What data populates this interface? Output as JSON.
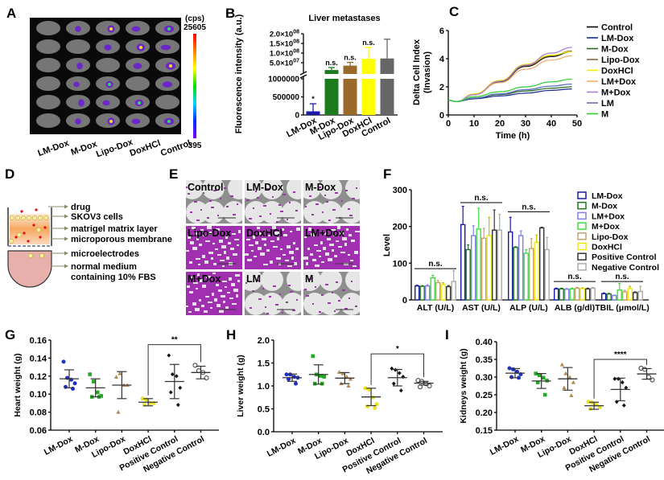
{
  "panel_labels": [
    "A",
    "B",
    "C",
    "D",
    "E",
    "F",
    "G",
    "H",
    "I"
  ],
  "panel_a": {
    "groups": [
      "LM-Dox",
      "M-Dox",
      "Lipo-Dox",
      "DoxHCl",
      "Control"
    ],
    "colorbar": {
      "unit": "(cps)",
      "max": "25605",
      "min": "395"
    }
  },
  "panel_d": {
    "labels": [
      "drug",
      "SKOV3 cells",
      "matrigel matrix layer",
      "microporous membrane",
      "microelectrodes",
      "normal medium",
      "containing 10% FBS"
    ]
  },
  "panel_e": {
    "tiles": [
      {
        "label": "Control",
        "stain": "low"
      },
      {
        "label": "LM-Dox",
        "stain": "low"
      },
      {
        "label": "M-Dox",
        "stain": "low"
      },
      {
        "label": "Lipo-Dox",
        "stain": "high"
      },
      {
        "label": "DoxHCl",
        "stain": "high"
      },
      {
        "label": "LM+Dox",
        "stain": "high"
      },
      {
        "label": "M+Dox",
        "stain": "high"
      },
      {
        "label": "LM",
        "stain": "low"
      },
      {
        "label": "M",
        "stain": "low"
      }
    ]
  },
  "chart_data": [
    {
      "panel": "B",
      "type": "bar",
      "title": "Liver metastases",
      "ylabel": "Fluorescence intensity (a.u.)",
      "categories": [
        "LM-Dox",
        "M-Dox",
        "Lipo-Dox",
        "DoxHCl",
        "Control"
      ],
      "values": [
        100000,
        12000000,
        35000000,
        70000000,
        72000000
      ],
      "errors": [
        210000,
        13000000,
        17000000,
        60000000,
        100000000
      ],
      "annotations": [
        "*",
        "n.s.",
        "n.s.",
        "n.s.",
        ""
      ],
      "colors": [
        "#1a1aa8",
        "#1e7a1e",
        "#9a6a2a",
        "#ffff00",
        "#666666"
      ],
      "axis_break": true,
      "lower_segment": {
        "ylim": [
          0,
          1000000
        ],
        "ticks": [
          0,
          500000,
          1000000
        ],
        "tick_labels": [
          "0",
          "500000",
          "1000000"
        ]
      },
      "upper_segment": {
        "ylim": [
          0,
          200000000
        ],
        "ticks": [
          50000000,
          100000000,
          150000000,
          200000000
        ],
        "tick_labels": [
          {
            "base": "5.0×10",
            "exp": "07"
          },
          {
            "base": "1.0×10",
            "exp": "08"
          },
          {
            "base": "1.5×10",
            "exp": "08"
          },
          {
            "base": "2.0×10",
            "exp": "08"
          }
        ]
      }
    },
    {
      "panel": "C",
      "type": "line",
      "xlabel": "Time (h)",
      "ylabel": [
        "Delta Cell Index",
        "(Invasion)"
      ],
      "xlim": [
        0,
        50
      ],
      "ylim": [
        0,
        6
      ],
      "xticks": [
        0,
        10,
        20,
        30,
        40,
        50
      ],
      "yticks": [
        0,
        2,
        4,
        6
      ],
      "x": [
        0,
        3,
        10,
        20,
        30,
        40,
        48
      ],
      "legend_position": "right",
      "series": [
        {
          "name": "Control",
          "color": "#000000",
          "values": [
            1.05,
            0.95,
            1.45,
            2.35,
            3.45,
            4.15,
            4.5
          ]
        },
        {
          "name": "LM-Dox",
          "color": "#1a2a8a",
          "values": [
            1.05,
            0.95,
            1.15,
            1.35,
            1.55,
            1.75,
            1.85
          ]
        },
        {
          "name": "M-Dox",
          "color": "#2a6a2a",
          "values": [
            1.05,
            0.95,
            1.2,
            1.45,
            1.7,
            1.9,
            2.0
          ]
        },
        {
          "name": "Lipo-Dox",
          "color": "#8a6a3a",
          "values": [
            1.05,
            0.95,
            1.45,
            2.4,
            3.5,
            4.2,
            4.55
          ]
        },
        {
          "name": "DoxHCl",
          "color": "#f0f000",
          "values": [
            1.05,
            0.95,
            1.5,
            2.45,
            3.6,
            4.25,
            4.5
          ]
        },
        {
          "name": "LM+Dox",
          "color": "#f0b070",
          "values": [
            1.05,
            0.95,
            1.45,
            2.3,
            3.25,
            3.9,
            4.2
          ]
        },
        {
          "name": "M+Dox",
          "color": "#b080d0",
          "values": [
            1.05,
            0.95,
            1.45,
            2.4,
            3.55,
            4.4,
            4.8
          ]
        },
        {
          "name": "LM",
          "color": "#6070c0",
          "values": [
            1.05,
            0.95,
            1.2,
            1.5,
            1.8,
            2.05,
            2.2
          ]
        },
        {
          "name": "M",
          "color": "#30d030",
          "values": [
            1.05,
            0.95,
            1.3,
            1.65,
            2.0,
            2.35,
            2.55
          ]
        }
      ]
    },
    {
      "panel": "F",
      "type": "bar",
      "ylabel": "Level",
      "ylim": [
        0,
        300
      ],
      "yticks": [
        0,
        100,
        200,
        300
      ],
      "categories": [
        "ALT (U/L)",
        "AST  (U/L)",
        "ALP  (U/L)",
        "ALB (g/dl)",
        "TBIL (μmol/L)"
      ],
      "legend_position": "top-right",
      "significance": [
        "n.s.",
        "n.s.",
        "n.s.",
        "n.s.",
        "n.s."
      ],
      "series": [
        {
          "name": "LM-Dox",
          "color": "#1a1aa0",
          "values": [
            38,
            205,
            185,
            30,
            17
          ],
          "errors": [
            2,
            50,
            40,
            2,
            2
          ]
        },
        {
          "name": "M-Dox",
          "color": "#1e7a1e",
          "values": [
            37,
            137,
            143,
            30,
            16
          ],
          "errors": [
            2,
            13,
            2,
            2,
            2
          ]
        },
        {
          "name": "LM+Dox",
          "color": "#8080e8",
          "values": [
            38,
            175,
            175,
            29,
            12
          ],
          "errors": [
            3,
            27,
            13,
            2,
            1
          ]
        },
        {
          "name": "M+Dox",
          "color": "#40dd40",
          "values": [
            60,
            193,
            127,
            30,
            27
          ],
          "errors": [
            7,
            57,
            10,
            2,
            18
          ]
        },
        {
          "name": "Lipo-Dox",
          "color": "#c8a070",
          "values": [
            47,
            168,
            140,
            32,
            22
          ],
          "errors": [
            6,
            27,
            27,
            2,
            4
          ]
        },
        {
          "name": "DoxHCl",
          "color": "#f0ec00",
          "values": [
            42,
            175,
            157,
            31,
            31
          ],
          "errors": [
            5,
            50,
            20,
            2,
            6
          ]
        },
        {
          "name": "Positive Control",
          "color": "#333333",
          "values": [
            36,
            190,
            196,
            30,
            20
          ],
          "errors": [
            3,
            55,
            2,
            2,
            2
          ]
        },
        {
          "name": "Negative Control",
          "color": "#aaaaaa",
          "values": [
            50,
            190,
            137,
            32,
            23
          ],
          "errors": [
            30,
            43,
            33,
            2,
            14
          ]
        }
      ],
      "bracket_levels": [
        85,
        265,
        240,
        50,
        50
      ]
    },
    {
      "panel": "G",
      "type": "scatter",
      "ylabel": "Heart weight (g)",
      "ylim": [
        0.06,
        0.16
      ],
      "yticks": [
        0.06,
        0.08,
        0.1,
        0.12,
        0.14,
        0.16
      ],
      "tick_labels": [
        "0.06",
        "0.08",
        "0.10",
        "0.12",
        "0.14",
        "0.16"
      ],
      "categories": [
        "LM-Dox",
        "M-Dox",
        "Lipo-Dox",
        "DoxHCl",
        "Positive Control",
        "Negative Control"
      ],
      "points": [
        [
          0.136,
          0.118,
          0.116,
          0.112,
          0.108,
          0.106
        ],
        [
          0.122,
          0.114,
          0.102,
          0.098,
          0.097,
          0.097
        ],
        [
          0.119,
          0.123,
          0.11,
          0.11,
          0.08
        ],
        [
          0.095,
          0.094,
          0.09,
          0.09,
          0.088
        ],
        [
          0.143,
          0.122,
          0.12,
          0.107,
          0.102,
          0.088
        ],
        [
          0.132,
          0.126,
          0.124,
          0.118
        ]
      ],
      "mean": [
        0.117,
        0.107,
        0.11,
        0.091,
        0.114,
        0.124
      ],
      "sd": [
        0.01,
        0.01,
        0.015,
        0.004,
        0.019,
        0.007
      ],
      "significance": {
        "between": [
          "DoxHCl",
          "Negative Control"
        ],
        "label": "**",
        "level": 0.155
      }
    },
    {
      "panel": "H",
      "type": "scatter",
      "ylabel": "Liver weight (g)",
      "ylim": [
        0,
        2.0
      ],
      "yticks": [
        0,
        0.5,
        1.0,
        1.5,
        2.0
      ],
      "tick_labels": [
        "0.0",
        "0.5",
        "1.0",
        "1.5",
        "2.0"
      ],
      "categories": [
        "LM-Dox",
        "M-Dox",
        "Lipo-Dox",
        "DoxHCl",
        "Positive Control",
        "Negative Control"
      ],
      "points": [
        [
          1.25,
          1.25,
          1.2,
          1.18,
          1.15,
          1.05
        ],
        [
          1.65,
          1.25,
          1.22,
          1.2,
          1.05,
          1.05
        ],
        [
          1.3,
          1.27,
          1.2,
          1.15,
          1.05,
          1.0
        ],
        [
          0.95,
          0.92,
          0.75,
          0.6,
          0.55,
          0.52
        ],
        [
          1.38,
          1.35,
          1.28,
          1.2,
          1.05,
          0.9
        ],
        [
          1.12,
          1.1,
          1.05,
          1.0,
          0.98
        ]
      ],
      "mean": [
        1.18,
        1.25,
        1.17,
        0.76,
        1.18,
        1.06
      ],
      "sd": [
        0.08,
        0.21,
        0.12,
        0.19,
        0.18,
        0.04
      ],
      "significance": {
        "between": [
          "DoxHCl",
          "Negative Control"
        ],
        "label": "*",
        "level": 1.7
      }
    },
    {
      "panel": "I",
      "type": "scatter",
      "ylabel": "Kidneys weight (g)",
      "ylim": [
        0.15,
        0.4
      ],
      "yticks": [
        0.15,
        0.2,
        0.25,
        0.3,
        0.35,
        0.4
      ],
      "tick_labels": [
        "0.15",
        "0.20",
        "0.25",
        "0.30",
        "0.35",
        "0.40"
      ],
      "categories": [
        "LM-Dox",
        "M-Dox",
        "Lipo-Dox",
        "DoxHCl",
        "Positive Control",
        "Negative Control"
      ],
      "points": [
        [
          0.325,
          0.322,
          0.315,
          0.308,
          0.3,
          0.298
        ],
        [
          0.31,
          0.305,
          0.298,
          0.29,
          0.285,
          0.25
        ],
        [
          0.335,
          0.31,
          0.3,
          0.285,
          0.27,
          0.248
        ],
        [
          0.23,
          0.228,
          0.222,
          0.215,
          0.21
        ],
        [
          0.295,
          0.295,
          0.285,
          0.27,
          0.23,
          0.22
        ],
        [
          0.325,
          0.322,
          0.3,
          0.292
        ]
      ],
      "mean": [
        0.311,
        0.289,
        0.295,
        0.219,
        0.265,
        0.309
      ],
      "sd": [
        0.013,
        0.021,
        0.032,
        0.01,
        0.032,
        0.015
      ],
      "significance": {
        "between": [
          "DoxHCl",
          "Negative Control"
        ],
        "label": "****",
        "level": 0.35
      }
    }
  ],
  "scatter_style": {
    "colors": [
      "#1f2fcc",
      "#22aa22",
      "#b08a50",
      "#e8e020",
      "#111111",
      "#555555"
    ],
    "markers": [
      "circle",
      "square",
      "triangle",
      "circle",
      "diamond",
      "open-circle"
    ]
  }
}
